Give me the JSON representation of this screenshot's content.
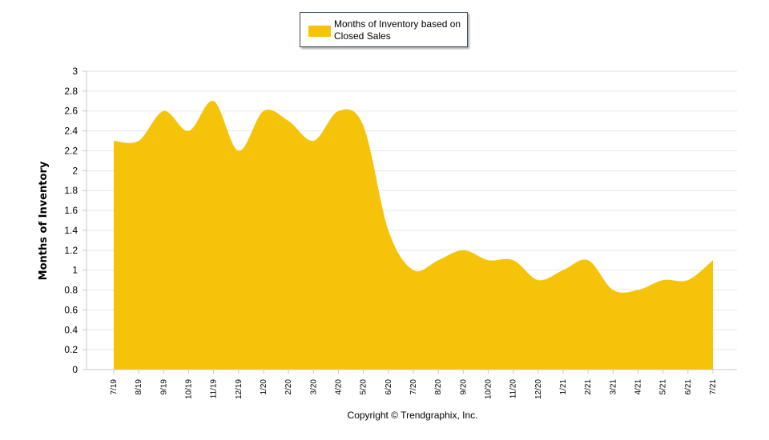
{
  "legend": {
    "label": "Months of Inventory based on Closed Sales"
  },
  "copyright": "Copyright © Trendgraphix, Inc.",
  "colors": {
    "series": "#f5c30a",
    "grid": "#e6e6e6",
    "axis": "#c8c8c8"
  },
  "chart_data": {
    "type": "area",
    "ylabel": "Months of Inventory",
    "xlabel": "",
    "ylim": [
      0,
      3
    ],
    "yticks": [
      0,
      0.2,
      0.4,
      0.6,
      0.8,
      1,
      1.2,
      1.4,
      1.6,
      1.8,
      2,
      2.2,
      2.4,
      2.6,
      2.8,
      3
    ],
    "ytick_labels": [
      "0",
      "0.2",
      "0.4",
      "0.6",
      "0.8",
      "1",
      "1.2",
      "1.4",
      "1.6",
      "1.8",
      "2",
      "2.2",
      "2.4",
      "2.6",
      "2.8",
      "3"
    ],
    "grid": true,
    "legend_position": "top-center",
    "categories": [
      "7/19",
      "8/19",
      "9/19",
      "10/19",
      "11/19",
      "12/19",
      "1/20",
      "2/20",
      "3/20",
      "4/20",
      "5/20",
      "6/20",
      "7/20",
      "8/20",
      "9/20",
      "10/20",
      "11/20",
      "12/20",
      "1/21",
      "2/21",
      "3/21",
      "4/21",
      "5/21",
      "6/21",
      "7/21"
    ],
    "series": [
      {
        "name": "Months of Inventory based on Closed Sales",
        "values": [
          2.3,
          2.3,
          2.6,
          2.4,
          2.7,
          2.2,
          2.6,
          2.5,
          2.3,
          2.6,
          2.45,
          1.4,
          1.0,
          1.1,
          1.2,
          1.1,
          1.1,
          0.9,
          1.0,
          1.1,
          0.8,
          0.8,
          0.9,
          0.9,
          1.1
        ]
      }
    ]
  }
}
